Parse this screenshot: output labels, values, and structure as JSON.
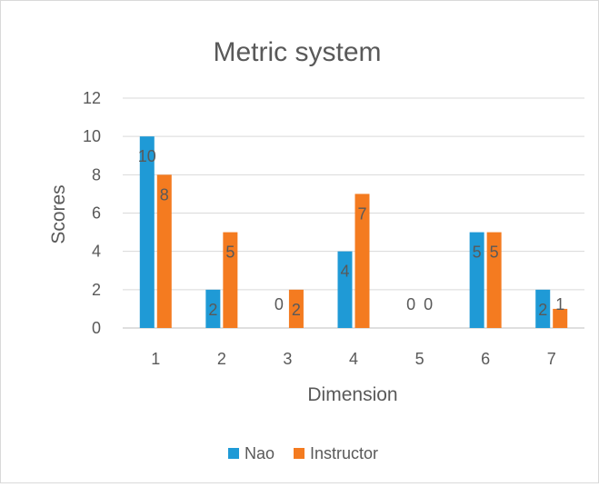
{
  "chart_data": {
    "type": "bar",
    "title": "Metric system",
    "xlabel": "Dimension",
    "ylabel": "Scores",
    "categories": [
      "1",
      "2",
      "3",
      "4",
      "5",
      "6",
      "7"
    ],
    "ylim": [
      0,
      12
    ],
    "yticks": [
      "0",
      "2",
      "4",
      "6",
      "8",
      "10",
      "12"
    ],
    "grid": true,
    "legend_position": "bottom",
    "series": [
      {
        "name": "Nao",
        "color": "#1f9ad6",
        "values": [
          10,
          2,
          0,
          4,
          0,
          5,
          2
        ]
      },
      {
        "name": "Instructor",
        "color": "#f47b20",
        "values": [
          8,
          5,
          2,
          7,
          0,
          5,
          1
        ]
      }
    ]
  }
}
